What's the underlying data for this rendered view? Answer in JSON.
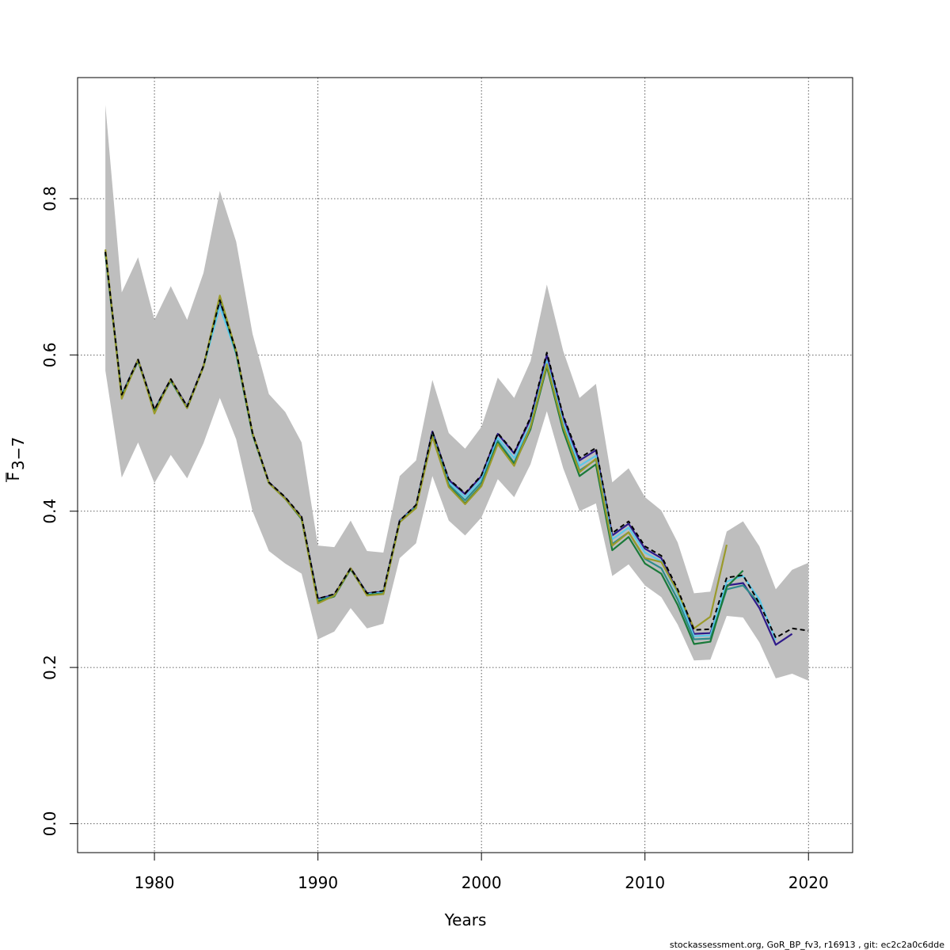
{
  "chart_data": {
    "type": "line",
    "xlabel": "Years",
    "ylabel_main": "F",
    "ylabel_sub": "3−7",
    "xlim": [
      1975.3,
      2022.7
    ],
    "ylim": [
      -0.037,
      0.955
    ],
    "xticks": [
      1980,
      1990,
      2000,
      2010,
      2020
    ],
    "yticks": [
      0.0,
      0.2,
      0.4,
      0.6,
      0.8
    ],
    "xtick_labels": [
      "1980",
      "1990",
      "2000",
      "2010",
      "2020"
    ],
    "ytick_labels": [
      "0.0",
      "0.2",
      "0.4",
      "0.6",
      "0.8"
    ],
    "grid": true,
    "band_color": "#bebebe",
    "band": {
      "x": [
        1977,
        1978,
        1979,
        1980,
        1981,
        1982,
        1983,
        1984,
        1985,
        1986,
        1987,
        1988,
        1989,
        1990,
        1991,
        1992,
        1993,
        1994,
        1995,
        1996,
        1997,
        1998,
        1999,
        2000,
        2001,
        2002,
        2003,
        2004,
        2005,
        2006,
        2007,
        2008,
        2009,
        2010,
        2011,
        2012,
        2013,
        2014,
        2015,
        2016,
        2017,
        2018,
        2019,
        2020
      ],
      "upper": [
        0.92,
        0.68,
        0.725,
        0.645,
        0.688,
        0.645,
        0.705,
        0.81,
        0.745,
        0.627,
        0.55,
        0.527,
        0.488,
        0.356,
        0.354,
        0.388,
        0.349,
        0.347,
        0.445,
        0.465,
        0.568,
        0.5,
        0.48,
        0.508,
        0.571,
        0.545,
        0.592,
        0.69,
        0.605,
        0.545,
        0.563,
        0.437,
        0.455,
        0.418,
        0.401,
        0.36,
        0.295,
        0.297,
        0.374,
        0.387,
        0.355,
        0.3,
        0.325,
        0.334
      ],
      "lower": [
        0.58,
        0.443,
        0.488,
        0.436,
        0.472,
        0.442,
        0.487,
        0.545,
        0.492,
        0.4,
        0.349,
        0.333,
        0.32,
        0.236,
        0.246,
        0.276,
        0.25,
        0.256,
        0.34,
        0.359,
        0.445,
        0.388,
        0.369,
        0.392,
        0.441,
        0.418,
        0.46,
        0.528,
        0.455,
        0.4,
        0.41,
        0.317,
        0.332,
        0.305,
        0.29,
        0.255,
        0.209,
        0.21,
        0.266,
        0.264,
        0.232,
        0.186,
        0.192,
        0.183
      ]
    },
    "series": [
      {
        "color": "#000000",
        "dashed": true,
        "x": [
          1977,
          1978,
          1979,
          1980,
          1981,
          1982,
          1983,
          1984,
          1985,
          1986,
          1987,
          1988,
          1989,
          1990,
          1991,
          1992,
          1993,
          1994,
          1995,
          1996,
          1997,
          1998,
          1999,
          2000,
          2001,
          2002,
          2003,
          2004,
          2005,
          2006,
          2007,
          2008,
          2009,
          2010,
          2011,
          2012,
          2013,
          2014,
          2015,
          2016,
          2017,
          2018,
          2019,
          2020
        ],
        "y": [
          0.732,
          0.549,
          0.594,
          0.53,
          0.569,
          0.534,
          0.586,
          0.67,
          0.605,
          0.5,
          0.437,
          0.418,
          0.393,
          0.288,
          0.294,
          0.327,
          0.295,
          0.298,
          0.388,
          0.408,
          0.502,
          0.441,
          0.423,
          0.446,
          0.5,
          0.475,
          0.52,
          0.603,
          0.522,
          0.468,
          0.481,
          0.372,
          0.387,
          0.355,
          0.343,
          0.3,
          0.248,
          0.249,
          0.315,
          0.318,
          0.282,
          0.238,
          0.25,
          0.247
        ]
      },
      {
        "color": "#2f1a8a",
        "dashed": false,
        "x": [
          1977,
          1978,
          1979,
          1980,
          1981,
          1982,
          1983,
          1984,
          1985,
          1986,
          1987,
          1988,
          1989,
          1990,
          1991,
          1992,
          1993,
          1994,
          1995,
          1996,
          1997,
          1998,
          1999,
          2000,
          2001,
          2002,
          2003,
          2004,
          2005,
          2006,
          2007,
          2008,
          2009,
          2010,
          2011,
          2012,
          2013,
          2014,
          2015,
          2016,
          2017,
          2018,
          2019
        ],
        "y": [
          0.732,
          0.549,
          0.594,
          0.53,
          0.569,
          0.534,
          0.586,
          0.669,
          0.604,
          0.5,
          0.437,
          0.417,
          0.392,
          0.288,
          0.293,
          0.327,
          0.295,
          0.297,
          0.388,
          0.407,
          0.502,
          0.44,
          0.422,
          0.445,
          0.499,
          0.474,
          0.518,
          0.6,
          0.52,
          0.465,
          0.478,
          0.369,
          0.384,
          0.352,
          0.34,
          0.297,
          0.243,
          0.244,
          0.305,
          0.308,
          0.276,
          0.229,
          0.243
        ]
      },
      {
        "color": "#5cc8e8",
        "dashed": false,
        "x": [
          1977,
          1978,
          1979,
          1980,
          1981,
          1982,
          1983,
          1984,
          1985,
          1986,
          1987,
          1988,
          1989,
          1990,
          1991,
          1992,
          1993,
          1994,
          1995,
          1996,
          1997,
          1998,
          1999,
          2000,
          2001,
          2002,
          2003,
          2004,
          2005,
          2006,
          2007,
          2008,
          2009,
          2010,
          2011,
          2012,
          2013,
          2014,
          2015,
          2016,
          2017,
          2018
        ],
        "y": [
          0.731,
          0.548,
          0.593,
          0.529,
          0.568,
          0.533,
          0.585,
          0.662,
          0.601,
          0.499,
          0.436,
          0.416,
          0.391,
          0.286,
          0.292,
          0.326,
          0.294,
          0.296,
          0.387,
          0.406,
          0.498,
          0.437,
          0.418,
          0.441,
          0.494,
          0.468,
          0.511,
          0.592,
          0.513,
          0.458,
          0.471,
          0.364,
          0.379,
          0.347,
          0.336,
          0.294,
          0.24,
          0.241,
          0.31,
          0.317,
          0.287,
          0.235
        ]
      },
      {
        "color": "#2e8b8b",
        "dashed": false,
        "x": [
          1977,
          1978,
          1979,
          1980,
          1981,
          1982,
          1983,
          1984,
          1985,
          1986,
          1987,
          1988,
          1989,
          1990,
          1991,
          1992,
          1993,
          1994,
          1995,
          1996,
          1997,
          1998,
          1999,
          2000,
          2001,
          2002,
          2003,
          2004,
          2005,
          2006,
          2007,
          2008,
          2009,
          2010,
          2011,
          2012,
          2013,
          2014,
          2015,
          2016,
          2017
        ],
        "y": [
          0.73,
          0.547,
          0.592,
          0.528,
          0.567,
          0.532,
          0.585,
          0.673,
          0.602,
          0.498,
          0.436,
          0.416,
          0.39,
          0.285,
          0.292,
          0.326,
          0.293,
          0.295,
          0.386,
          0.405,
          0.497,
          0.434,
          0.414,
          0.437,
          0.49,
          0.462,
          0.508,
          0.588,
          0.508,
          0.452,
          0.466,
          0.358,
          0.373,
          0.339,
          0.327,
          0.287,
          0.236,
          0.237,
          0.3,
          0.305,
          0.282
        ]
      },
      {
        "color": "#1a7a3a",
        "dashed": false,
        "x": [
          1977,
          1978,
          1979,
          1980,
          1981,
          1982,
          1983,
          1984,
          1985,
          1986,
          1987,
          1988,
          1989,
          1990,
          1991,
          1992,
          1993,
          1994,
          1995,
          1996,
          1997,
          1998,
          1999,
          2000,
          2001,
          2002,
          2003,
          2004,
          2005,
          2006,
          2007,
          2008,
          2009,
          2010,
          2011,
          2012,
          2013,
          2014,
          2015,
          2016
        ],
        "y": [
          0.731,
          0.547,
          0.593,
          0.528,
          0.568,
          0.532,
          0.585,
          0.674,
          0.603,
          0.499,
          0.436,
          0.416,
          0.39,
          0.284,
          0.291,
          0.326,
          0.293,
          0.294,
          0.386,
          0.405,
          0.496,
          0.432,
          0.41,
          0.433,
          0.488,
          0.46,
          0.505,
          0.585,
          0.503,
          0.445,
          0.46,
          0.35,
          0.367,
          0.333,
          0.32,
          0.28,
          0.23,
          0.233,
          0.303,
          0.324
        ]
      },
      {
        "color": "#9a9a2a",
        "dashed": false,
        "x": [
          1977,
          1978,
          1979,
          1980,
          1981,
          1982,
          1983,
          1984,
          1985,
          1986,
          1987,
          1988,
          1989,
          1990,
          1991,
          1992,
          1993,
          1994,
          1995,
          1996,
          1997,
          1998,
          1999,
          2000,
          2001,
          2002,
          2003,
          2004,
          2005,
          2006,
          2007,
          2008,
          2009,
          2010,
          2011,
          2012,
          2013,
          2014,
          2015
        ],
        "y": [
          0.735,
          0.544,
          0.594,
          0.525,
          0.569,
          0.532,
          0.585,
          0.676,
          0.605,
          0.5,
          0.436,
          0.416,
          0.391,
          0.282,
          0.292,
          0.327,
          0.292,
          0.294,
          0.386,
          0.404,
          0.495,
          0.431,
          0.409,
          0.432,
          0.486,
          0.458,
          0.508,
          0.588,
          0.508,
          0.45,
          0.467,
          0.356,
          0.373,
          0.34,
          0.335,
          0.297,
          0.25,
          0.265,
          0.357
        ]
      }
    ]
  },
  "footer": "stockassessment.org, GoR_BP_fv3, r16913 , git: ec2c2a0c6dde"
}
